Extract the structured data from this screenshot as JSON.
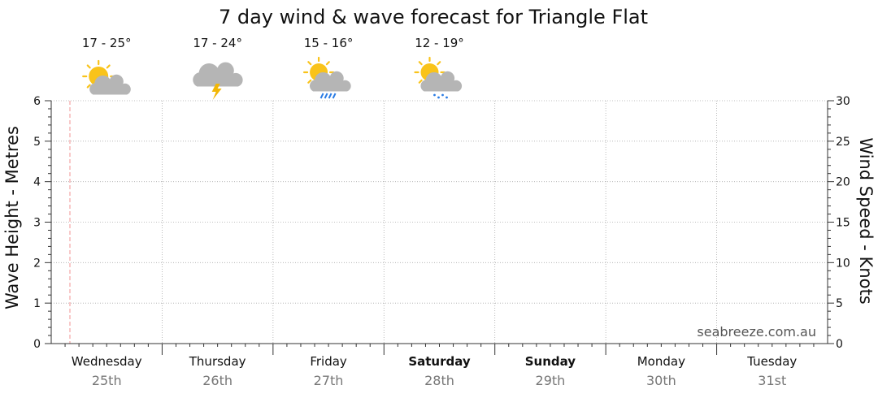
{
  "chart_data": {
    "type": "line",
    "title": "7 day wind & wave forecast for Triangle Flat",
    "ylabel_left": "Wave Height - Metres",
    "ylabel_right": "Wind Speed - Knots",
    "ylim_left": [
      0,
      6
    ],
    "ylim_right": [
      0,
      30
    ],
    "yticks_left": [
      "0",
      "1",
      "2",
      "3",
      "4",
      "5",
      "6"
    ],
    "yticks_right": [
      "0",
      "5",
      "10",
      "15",
      "20",
      "25",
      "30"
    ],
    "grid": true,
    "watermark": "seabreeze.com.au",
    "series": [],
    "days": [
      {
        "name": "Wednesday",
        "date": "25th",
        "bold": false,
        "temp": "17 - 25°",
        "icon": "partly-cloudy-icon"
      },
      {
        "name": "Thursday",
        "date": "26th",
        "bold": false,
        "temp": "17 - 24°",
        "icon": "thunderstorm-icon"
      },
      {
        "name": "Friday",
        "date": "27th",
        "bold": false,
        "temp": "15 - 16°",
        "icon": "sun-rain-icon"
      },
      {
        "name": "Saturday",
        "date": "28th",
        "bold": true,
        "temp": "12 - 19°",
        "icon": "sun-drizzle-icon"
      },
      {
        "name": "Sunday",
        "date": "29th",
        "bold": true,
        "temp": "",
        "icon": ""
      },
      {
        "name": "Monday",
        "date": "30th",
        "bold": false,
        "temp": "",
        "icon": ""
      },
      {
        "name": "Tuesday",
        "date": "31st",
        "bold": false,
        "temp": "",
        "icon": ""
      }
    ],
    "colors": {
      "sun": "#f9c31a",
      "cloud": "#b5b5b5",
      "lightning": "#f2b705",
      "rain": "#2a7be4",
      "now_marker": "#f2a5a5",
      "grid": "#aaaaaa"
    }
  }
}
